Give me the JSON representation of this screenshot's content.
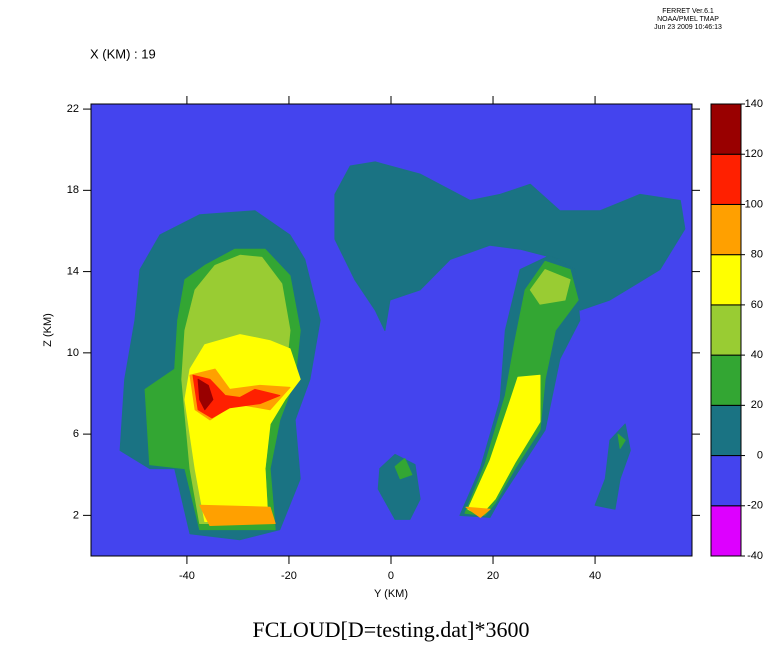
{
  "chart_data": {
    "type": "contour",
    "header": [
      "FERRET Ver.6.1",
      "NOAA/PMEL TMAP",
      "Jun 23 2009 10:46:13"
    ],
    "subtitle": "X (KM) : 19",
    "title": "FCLOUD[D=testing.dat]*3600",
    "x_label": "Y (KM)",
    "y_label": "Z (KM)",
    "xlim": [
      -58.8,
      59
    ],
    "ylim": [
      0,
      22.25
    ],
    "xticks": [
      -40,
      -20,
      0,
      20,
      40
    ],
    "yticks": [
      2,
      6,
      10,
      14,
      18,
      22
    ],
    "levels": [
      -40,
      -20,
      0,
      20,
      40,
      60,
      80,
      100,
      120,
      140
    ],
    "colors": [
      "#dd00ff",
      "#4444ee",
      "#1a7383",
      "#33a633",
      "#99cc33",
      "#ffff00",
      "#ffa000",
      "#ff2000",
      "#990000"
    ],
    "regions": [
      {
        "value": -20,
        "points": [
          [
            -58.8,
            0
          ],
          [
            59,
            0
          ],
          [
            59,
            22.25
          ],
          [
            -58.8,
            22.25
          ]
        ]
      },
      {
        "value": 0,
        "points": [
          [
            -50.2,
            11.6
          ],
          [
            -49.2,
            14.1
          ],
          [
            -45.3,
            15.8
          ],
          [
            -37.5,
            16.8
          ],
          [
            -26.7,
            17.0
          ],
          [
            -19.8,
            15.8
          ],
          [
            -16.9,
            14.6
          ],
          [
            -13.9,
            11.6
          ],
          [
            -15.9,
            8.7
          ],
          [
            -18.8,
            6.7
          ],
          [
            -17.8,
            3.8
          ],
          [
            -21.8,
            1.3
          ],
          [
            -29.6,
            0.8
          ],
          [
            -39.4,
            1.1
          ],
          [
            -42.4,
            4.3
          ],
          [
            -47.3,
            4.3
          ],
          [
            -53.1,
            5.2
          ],
          [
            -52.2,
            8.7
          ]
        ]
      },
      {
        "value": 20,
        "points": [
          [
            -41.8,
            11.6
          ],
          [
            -40.4,
            13.6
          ],
          [
            -36.5,
            14.3
          ],
          [
            -30.6,
            15.1
          ],
          [
            -24.7,
            15.1
          ],
          [
            -19.8,
            13.8
          ],
          [
            -17.8,
            11.1
          ],
          [
            -18.8,
            8.7
          ],
          [
            -21.8,
            6.7
          ],
          [
            -23.7,
            4.3
          ],
          [
            -22.7,
            1.3
          ],
          [
            -37.5,
            1.3
          ],
          [
            -40.4,
            4.3
          ],
          [
            -47.3,
            4.5
          ],
          [
            -48.2,
            8.2
          ],
          [
            -42.4,
            9.2
          ]
        ]
      },
      {
        "value": 40,
        "points": [
          [
            -40.4,
            11.1
          ],
          [
            -38.4,
            13.1
          ],
          [
            -34.5,
            14.3
          ],
          [
            -29.6,
            14.8
          ],
          [
            -25.3,
            14.7
          ],
          [
            -21.4,
            13.4
          ],
          [
            -19.8,
            11.1
          ],
          [
            -20.8,
            8.7
          ],
          [
            -23.7,
            6.7
          ],
          [
            -24.7,
            4.3
          ],
          [
            -24.1,
            1.6
          ],
          [
            -37.5,
            1.6
          ],
          [
            -39.4,
            4.3
          ],
          [
            -41.0,
            8.7
          ]
        ]
      },
      {
        "value": 60,
        "points": [
          [
            -39.4,
            9.2
          ],
          [
            -36.5,
            10.4
          ],
          [
            -29.6,
            10.9
          ],
          [
            -23.7,
            10.6
          ],
          [
            -19.8,
            10.2
          ],
          [
            -17.8,
            8.7
          ],
          [
            -20.8,
            7.7
          ],
          [
            -23.7,
            6.5
          ],
          [
            -24.7,
            4.3
          ],
          [
            -24.1,
            1.7
          ],
          [
            -36.5,
            1.7
          ],
          [
            -38.4,
            4.3
          ],
          [
            -40.4,
            7.7
          ]
        ]
      },
      {
        "value": 80,
        "points": [
          [
            -37.5,
            2.5
          ],
          [
            -23.7,
            2.4
          ],
          [
            -22.7,
            1.6
          ],
          [
            -35.5,
            1.5
          ]
        ]
      },
      {
        "value": 80,
        "points": [
          [
            -39.4,
            8.9
          ],
          [
            -34.5,
            9.2
          ],
          [
            -31.6,
            8.2
          ],
          [
            -25.7,
            8.4
          ],
          [
            -19.8,
            8.3
          ],
          [
            -23.7,
            7.2
          ],
          [
            -30.6,
            7.5
          ],
          [
            -35.5,
            6.7
          ],
          [
            -38.4,
            7.2
          ]
        ]
      },
      {
        "value": 100,
        "points": [
          [
            -38.8,
            8.9
          ],
          [
            -35.5,
            8.7
          ],
          [
            -32.5,
            7.9
          ],
          [
            -29.6,
            7.8
          ],
          [
            -26.7,
            8.2
          ],
          [
            -21.8,
            7.9
          ],
          [
            -25.7,
            7.5
          ],
          [
            -31.6,
            7.3
          ],
          [
            -35.1,
            6.8
          ],
          [
            -37.8,
            7.2
          ]
        ]
      },
      {
        "value": 120,
        "points": [
          [
            -37.8,
            8.7
          ],
          [
            -35.8,
            8.4
          ],
          [
            -34.9,
            7.7
          ],
          [
            -36.5,
            7.2
          ],
          [
            -37.5,
            7.7
          ]
        ]
      },
      {
        "value": 0,
        "points": [
          [
            -11.0,
            17.8
          ],
          [
            -8.0,
            19.2
          ],
          [
            -3.1,
            19.4
          ],
          [
            5.7,
            18.8
          ],
          [
            15.5,
            17.5
          ],
          [
            21.4,
            17.8
          ],
          [
            27.3,
            18.3
          ],
          [
            33.1,
            17.0
          ],
          [
            41.0,
            17.0
          ],
          [
            48.8,
            17.8
          ],
          [
            56.7,
            17.5
          ],
          [
            57.6,
            16.1
          ],
          [
            52.7,
            14.1
          ],
          [
            42.9,
            12.6
          ],
          [
            37.1,
            12.1
          ],
          [
            31.2,
            13.1
          ],
          [
            33.1,
            14.6
          ],
          [
            25.3,
            15.1
          ],
          [
            19.4,
            15.3
          ],
          [
            11.6,
            14.6
          ],
          [
            5.7,
            13.1
          ],
          [
            -0.2,
            12.6
          ],
          [
            -1.2,
            11.1
          ],
          [
            -3.1,
            12.1
          ],
          [
            -7.1,
            13.6
          ],
          [
            -11.0,
            15.6
          ]
        ]
      },
      {
        "value": 0,
        "points": [
          [
            13.5,
            2.0
          ],
          [
            17.5,
            4.3
          ],
          [
            21.4,
            7.7
          ],
          [
            22.4,
            11.1
          ],
          [
            25.3,
            14.1
          ],
          [
            31.2,
            14.8
          ],
          [
            36.1,
            14.1
          ],
          [
            37.0,
            11.6
          ],
          [
            33.1,
            9.7
          ],
          [
            30.2,
            6.2
          ],
          [
            25.3,
            4.3
          ],
          [
            21.4,
            2.8
          ],
          [
            19.4,
            1.9
          ]
        ]
      },
      {
        "value": 20,
        "points": [
          [
            14.5,
            2.1
          ],
          [
            18.4,
            4.5
          ],
          [
            22.4,
            7.9
          ],
          [
            24.3,
            10.6
          ],
          [
            26.3,
            13.1
          ],
          [
            30.2,
            14.5
          ],
          [
            35.1,
            14.1
          ],
          [
            36.7,
            12.6
          ],
          [
            32.2,
            11.1
          ],
          [
            30.2,
            8.7
          ],
          [
            29.2,
            6.2
          ],
          [
            24.3,
            4.3
          ],
          [
            20.4,
            2.6
          ],
          [
            18.4,
            2.0
          ]
        ]
      },
      {
        "value": 40,
        "points": [
          [
            27.3,
            13.1
          ],
          [
            30.2,
            14.1
          ],
          [
            35.1,
            13.6
          ],
          [
            34.1,
            12.6
          ],
          [
            29.2,
            12.4
          ]
        ]
      },
      {
        "value": 60,
        "points": [
          [
            15.1,
            2.3
          ],
          [
            19.4,
            4.7
          ],
          [
            23.3,
            7.6
          ],
          [
            24.9,
            8.8
          ],
          [
            29.2,
            8.9
          ],
          [
            29.2,
            6.6
          ],
          [
            24.3,
            4.6
          ],
          [
            20.4,
            2.8
          ],
          [
            17.5,
            2.0
          ]
        ]
      },
      {
        "value": 80,
        "points": [
          [
            14.7,
            2.4
          ],
          [
            19.4,
            2.3
          ],
          [
            17.5,
            1.9
          ]
        ]
      },
      {
        "value": 0,
        "points": [
          [
            -2.2,
            4.3
          ],
          [
            0.8,
            5.0
          ],
          [
            4.7,
            4.5
          ],
          [
            5.7,
            2.8
          ],
          [
            3.7,
            1.8
          ],
          [
            0.8,
            1.8
          ],
          [
            -2.5,
            3.3
          ]
        ]
      },
      {
        "value": 20,
        "points": [
          [
            0.8,
            4.4
          ],
          [
            2.7,
            4.8
          ],
          [
            4.1,
            4.0
          ],
          [
            1.8,
            3.8
          ]
        ]
      },
      {
        "value": 0,
        "points": [
          [
            40.0,
            2.5
          ],
          [
            42.0,
            3.8
          ],
          [
            42.9,
            5.7
          ],
          [
            45.9,
            6.5
          ],
          [
            46.9,
            5.2
          ],
          [
            44.9,
            3.8
          ],
          [
            43.9,
            2.3
          ]
        ]
      },
      {
        "value": 20,
        "points": [
          [
            44.5,
            6.0
          ],
          [
            45.9,
            5.7
          ],
          [
            44.9,
            5.3
          ]
        ]
      }
    ]
  }
}
